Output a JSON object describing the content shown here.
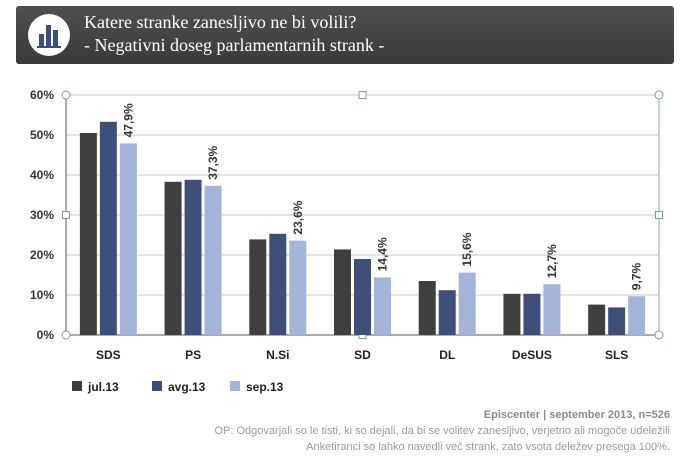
{
  "header": {
    "title_line1": "Katere stranke zanesljivo ne bi volili?",
    "title_line2": "- Negativni doseg  parlamentarnih strank -",
    "icon": "bar-chart-icon"
  },
  "chart_data": {
    "type": "bar",
    "categories": [
      "SDS",
      "PS",
      "N.Si",
      "SD",
      "DL",
      "DeSUS",
      "SLS"
    ],
    "series": [
      {
        "name": "jul.13",
        "color": "#3f3f3f",
        "values": [
          50.5,
          38.3,
          23.9,
          21.4,
          13.5,
          10.3,
          7.6
        ]
      },
      {
        "name": "avg.13",
        "color": "#3f4f7a",
        "values": [
          53.3,
          38.8,
          25.3,
          19.0,
          11.2,
          10.3,
          6.9
        ]
      },
      {
        "name": "sep.13",
        "color": "#a3b4d8",
        "values": [
          47.9,
          37.3,
          23.6,
          14.4,
          15.6,
          12.7,
          9.7
        ]
      }
    ],
    "data_labels": [
      "47,9%",
      "37,3%",
      "23,6%",
      "14,4%",
      "15,6%",
      "12,7%",
      "9,7%"
    ],
    "y_ticks": [
      "0%",
      "10%",
      "20%",
      "30%",
      "40%",
      "50%",
      "60%"
    ],
    "ylim": [
      0,
      60
    ],
    "grid": true,
    "legend_position": "bottom-left"
  },
  "footer": {
    "source": "Episcenter   |  september 2013,  n=526",
    "note1": "OP: Odgovarjali so le tisti, ki so dejali, da bi se volitev  zanesljivo, verjetno ali mogoče udeležili",
    "note2": "Anketiranci so lahko navedli več strank, zato vsota deležev presega 100%."
  }
}
